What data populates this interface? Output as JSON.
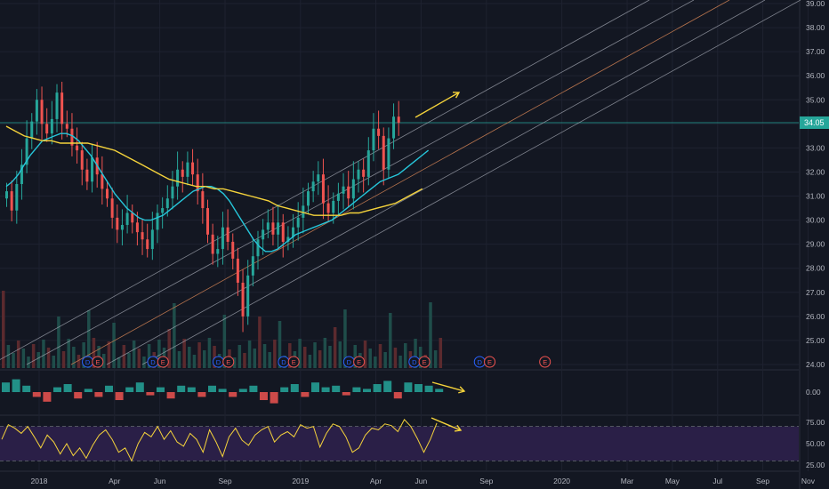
{
  "colors": {
    "background": "#131722",
    "grid": "#1e2230",
    "axis_text": "#b2b5be",
    "candle_up": "#26a69a",
    "candle_down": "#ef5350",
    "volume_up": "#1f4d4a",
    "volume_down": "#5b2a2e",
    "ma_fast": "#26c6da",
    "ma_slow": "#f5d33b",
    "channel_line": "#aeb2bd",
    "channel_mid": "#c87d52",
    "price_line": "#26a69a",
    "annotation": "#f5d33b",
    "rsi_band": "#2a1f47",
    "rsi_line": "#f5d33b",
    "macd_up": "#26a69a",
    "macd_down": "#ef5350"
  },
  "chart_data": [
    {
      "type": "candlestick",
      "panel": "price",
      "y_ticks": [
        "24.00",
        "25.00",
        "26.00",
        "27.00",
        "28.00",
        "29.00",
        "30.00",
        "31.00",
        "32.00",
        "33.00",
        "34.00",
        "35.00",
        "36.00",
        "37.00",
        "38.00",
        "39.00"
      ],
      "ylim": [
        24,
        39
      ],
      "x_ticks": [
        "2018",
        "Apr",
        "Jun",
        "Sep",
        "2019",
        "Apr",
        "Jun",
        "Sep",
        "2020",
        "Mar",
        "May",
        "Jul",
        "Sep",
        "Nov"
      ],
      "x_tick_index": [
        0,
        15,
        24,
        37,
        52,
        67,
        76,
        89,
        104,
        117,
        126,
        135,
        144,
        153
      ],
      "last_price_label": "34.05",
      "last_price": 34.05,
      "close": [
        31.2,
        30.4,
        31.5,
        32.3,
        33.4,
        34.1,
        35.0,
        34.0,
        33.6,
        34.2,
        35.3,
        34.0,
        33.8,
        33.1,
        32.9,
        32.1,
        31.6,
        32.6,
        31.9,
        31.3,
        30.9,
        30.1,
        29.6,
        29.8,
        30.3,
        29.9,
        29.5,
        29.2,
        28.8,
        29.6,
        30.3,
        30.5,
        30.9,
        31.4,
        32.1,
        31.8,
        32.4,
        31.9,
        31.2,
        30.5,
        29.4,
        28.6,
        28.8,
        29.7,
        29.1,
        28.4,
        27.4,
        26.0,
        27.7,
        28.5,
        29.2,
        29.6,
        29.9,
        29.4,
        29.9,
        29.1,
        29.3,
        29.7,
        30.1,
        30.6,
        31.2,
        31.6,
        31.9,
        30.7,
        30.3,
        30.8,
        31.1,
        31.4,
        30.9,
        31.7,
        32.1,
        31.8,
        32.9,
        33.8,
        33.5,
        32.1,
        33.4,
        34.3,
        34.05
      ],
      "ma_fast": [
        31.4,
        31.6,
        31.9,
        32.3,
        32.7,
        33.0,
        33.3,
        33.4,
        33.5,
        33.6,
        33.6,
        33.5,
        33.3,
        33.0,
        32.7,
        32.3,
        31.9,
        31.5,
        31.1,
        30.8,
        30.5,
        30.3,
        30.1,
        30.0,
        30.0,
        30.1,
        30.2,
        30.4,
        30.6,
        30.8,
        31.0,
        31.2,
        31.3,
        31.4,
        31.4,
        31.3,
        31.1,
        30.8,
        30.4,
        30.0,
        29.6,
        29.2,
        28.9,
        28.7,
        28.7,
        28.8,
        29.0,
        29.2,
        29.4,
        29.5,
        29.6,
        29.7,
        29.8,
        29.9,
        30.0,
        30.2,
        30.4,
        30.6,
        30.8,
        31.0,
        31.2,
        31.4,
        31.6,
        31.7,
        31.8,
        31.9,
        32.1,
        32.3,
        32.5,
        32.7,
        32.9
      ],
      "ma_slow": [
        33.9,
        33.7,
        33.5,
        33.4,
        33.3,
        33.3,
        33.2,
        33.2,
        33.2,
        33.2,
        33.1,
        33.0,
        32.9,
        32.7,
        32.5,
        32.3,
        32.1,
        31.9,
        31.7,
        31.6,
        31.5,
        31.4,
        31.4,
        31.3,
        31.3,
        31.2,
        31.1,
        31.0,
        30.9,
        30.8,
        30.6,
        30.5,
        30.4,
        30.3,
        30.2,
        30.2,
        30.2,
        30.2,
        30.3,
        30.3,
        30.4,
        30.5,
        30.6,
        30.7,
        30.9,
        31.1,
        31.3
      ]
    },
    {
      "type": "histogram",
      "panel": "oscillator",
      "y_ticks": [
        "0.00"
      ],
      "values": [
        0.6,
        0.8,
        0.4,
        -0.3,
        -0.6,
        0.3,
        0.5,
        -0.4,
        0.2,
        -0.3,
        0.4,
        -0.5,
        0.3,
        0.6,
        -0.2,
        0.3,
        -0.4,
        0.4,
        0.3,
        -0.3,
        0.4,
        0.2,
        -0.3,
        0.2,
        0.4,
        -0.5,
        -0.7,
        0.3,
        0.5,
        -0.3,
        0.6,
        0.3,
        0.4,
        -0.2,
        0.3,
        0.2,
        0.5,
        0.7,
        -0.4,
        0.6,
        0.5,
        0.4,
        0.2
      ]
    },
    {
      "type": "line",
      "panel": "rsi",
      "y_ticks": [
        "75.00",
        "50.00",
        "25.00"
      ],
      "ylim": [
        20,
        80
      ],
      "bands": [
        30,
        70
      ],
      "values": [
        55,
        72,
        68,
        62,
        70,
        58,
        45,
        60,
        52,
        38,
        50,
        36,
        45,
        33,
        48,
        60,
        66,
        55,
        40,
        45,
        30,
        50,
        63,
        58,
        70,
        55,
        65,
        52,
        47,
        62,
        55,
        40,
        66,
        52,
        35,
        58,
        68,
        54,
        48,
        60,
        66,
        70,
        52,
        60,
        64,
        58,
        72,
        68,
        70,
        46,
        62,
        73,
        70,
        58,
        40,
        45,
        60,
        68,
        66,
        73,
        71,
        64,
        78,
        70,
        56,
        40,
        55,
        74
      ]
    }
  ],
  "event_markers": [
    {
      "label": "D",
      "x_index": 7
    },
    {
      "label": "E",
      "x_index": 9
    },
    {
      "label": "D",
      "x_index": 20
    },
    {
      "label": "E",
      "x_index": 22
    },
    {
      "label": "D",
      "x_index": 33
    },
    {
      "label": "E",
      "x_index": 35
    },
    {
      "label": "D",
      "x_index": 46
    },
    {
      "label": "E",
      "x_index": 48
    },
    {
      "label": "D",
      "x_index": 59
    },
    {
      "label": "E",
      "x_index": 61
    },
    {
      "label": "D",
      "x_index": 72
    },
    {
      "label": "E",
      "x_index": 74
    },
    {
      "label": "D",
      "x_index": 85
    },
    {
      "label": "E",
      "x_index": 87
    },
    {
      "label": "E",
      "x_index": 98
    }
  ]
}
